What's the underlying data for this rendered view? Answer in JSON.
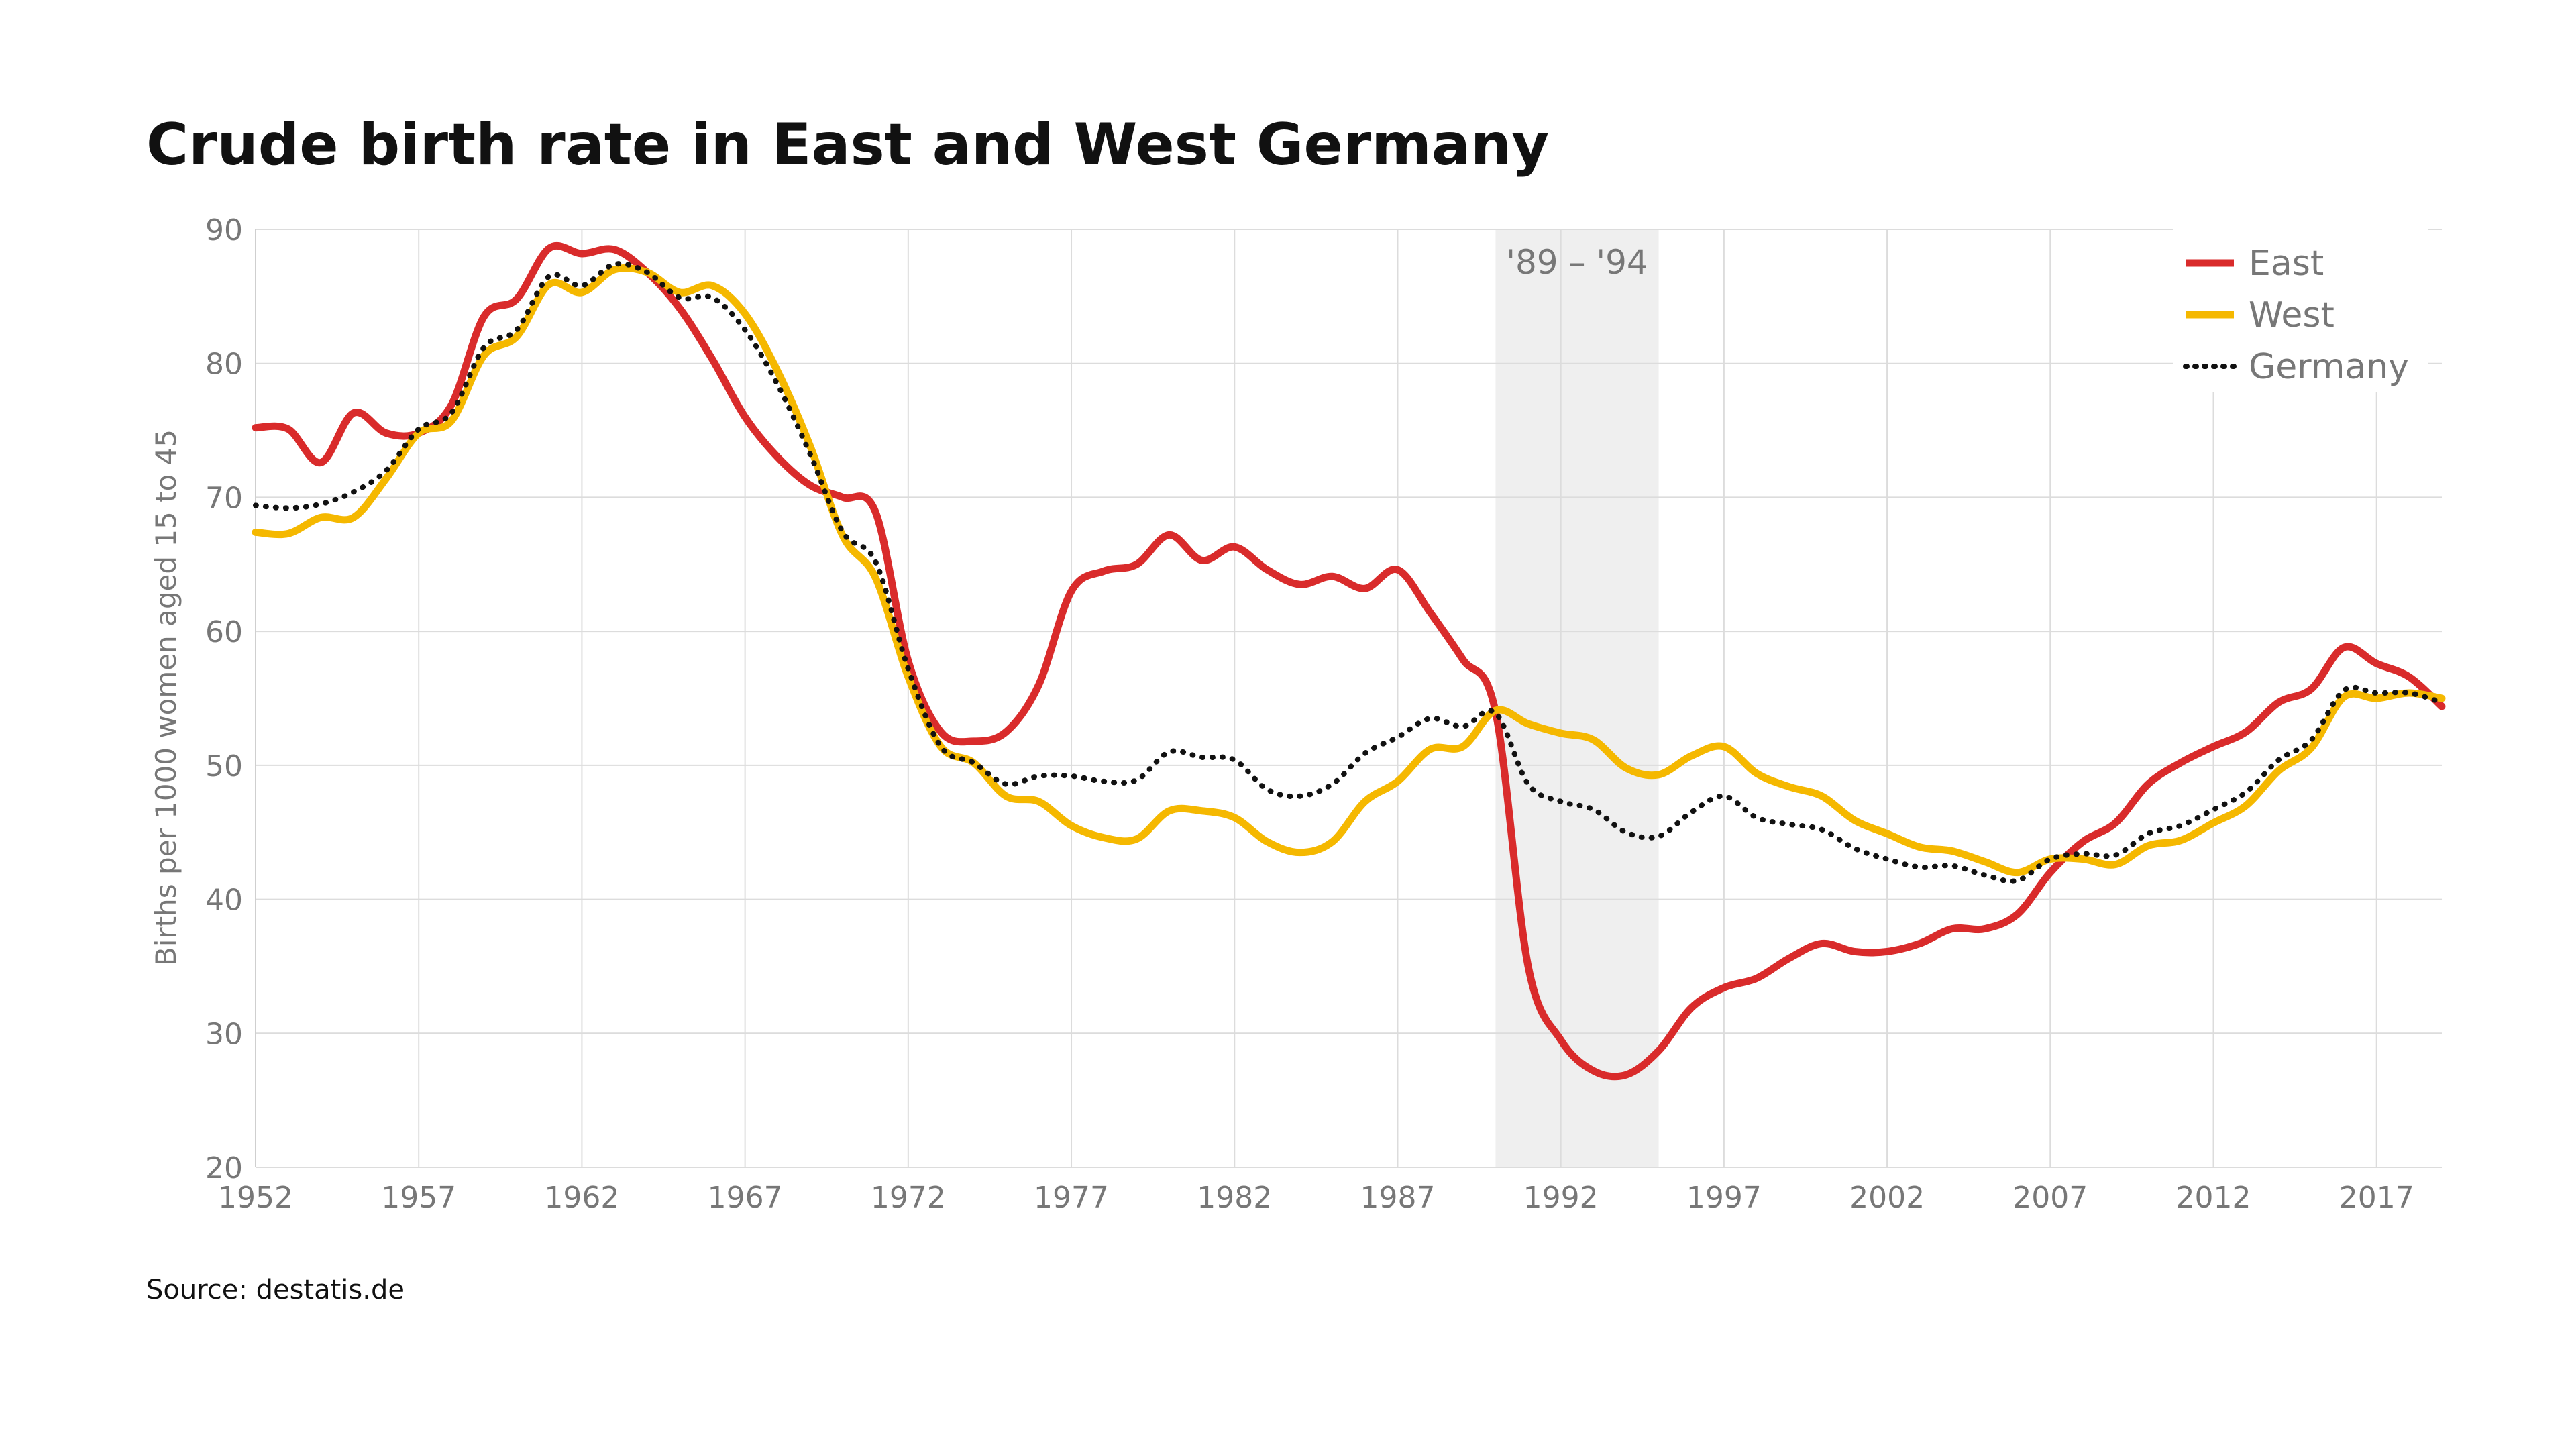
{
  "chart_data": {
    "type": "line",
    "title": "Crude birth rate in East and West Germany",
    "ylabel": "Births per 1000 women aged 15 to 45",
    "xlabel": "",
    "xlim": [
      1952,
      2019
    ],
    "ylim": [
      20,
      90
    ],
    "x_ticks": [
      1952,
      1957,
      1962,
      1967,
      1972,
      1977,
      1982,
      1987,
      1992,
      1997,
      2002,
      2007,
      2012,
      2017
    ],
    "y_ticks": [
      20,
      30,
      40,
      50,
      60,
      70,
      80,
      90
    ],
    "grid": true,
    "legend_position": "top-right",
    "source": "Source: destatis.de",
    "shaded_region": {
      "from": 1990,
      "to": 1995,
      "label": "'89 – '94",
      "color": "#efefef"
    },
    "x": [
      1952,
      1953,
      1954,
      1955,
      1956,
      1957,
      1958,
      1959,
      1960,
      1961,
      1962,
      1963,
      1964,
      1965,
      1966,
      1967,
      1968,
      1969,
      1970,
      1971,
      1972,
      1973,
      1974,
      1975,
      1976,
      1977,
      1978,
      1979,
      1980,
      1981,
      1982,
      1983,
      1984,
      1985,
      1986,
      1987,
      1988,
      1989,
      1990,
      1991,
      1992,
      1993,
      1994,
      1995,
      1996,
      1997,
      1998,
      1999,
      2000,
      2001,
      2002,
      2003,
      2004,
      2005,
      2006,
      2007,
      2008,
      2009,
      2010,
      2011,
      2012,
      2013,
      2014,
      2015,
      2016,
      2017,
      2018,
      2019
    ],
    "series": [
      {
        "name": "East",
        "color": "#d92b2b",
        "style": "solid",
        "values": [
          75.2,
          75.1,
          72.6,
          76.3,
          74.8,
          74.8,
          76.9,
          83.5,
          84.8,
          88.6,
          88.2,
          88.5,
          86.8,
          84.1,
          80.3,
          76.0,
          73.0,
          70.9,
          70.0,
          68.9,
          57.8,
          52.5,
          51.8,
          52.5,
          56.0,
          63.0,
          64.5,
          65.0,
          67.2,
          65.3,
          66.3,
          64.6,
          63.5,
          64.1,
          63.2,
          64.6,
          61.4,
          57.9,
          54.0,
          35.0,
          29.5,
          27.2,
          26.9,
          28.7,
          31.9,
          33.4,
          34.1,
          35.6,
          36.7,
          36.1,
          36.1,
          36.7,
          37.8,
          37.8,
          38.9,
          42.0,
          44.3,
          45.7,
          48.6,
          50.2,
          51.4,
          52.5,
          54.7,
          55.7,
          58.8,
          57.6,
          56.6,
          54.4
        ]
      },
      {
        "name": "West",
        "color": "#f5b800",
        "style": "solid",
        "values": [
          67.4,
          67.3,
          68.5,
          68.5,
          71.4,
          74.8,
          75.7,
          80.6,
          82.0,
          85.9,
          85.3,
          87.0,
          86.8,
          85.3,
          85.8,
          83.7,
          79.4,
          73.8,
          67.1,
          64.0,
          56.6,
          51.4,
          50.2,
          47.7,
          47.3,
          45.5,
          44.6,
          44.5,
          46.6,
          46.6,
          46.1,
          44.3,
          43.5,
          44.3,
          47.3,
          48.8,
          51.2,
          51.4,
          54.1,
          53.1,
          52.4,
          51.9,
          49.8,
          49.3,
          50.7,
          51.4,
          49.4,
          48.4,
          47.7,
          45.9,
          44.9,
          43.9,
          43.6,
          42.8,
          42.0,
          43.0,
          43.0,
          42.6,
          44.0,
          44.4,
          45.7,
          47.0,
          49.6,
          51.3,
          55.1,
          55.0,
          55.4,
          55.0
        ]
      },
      {
        "name": "Germany",
        "color": "#111111",
        "style": "dotted",
        "values": [
          69.4,
          69.2,
          69.5,
          70.4,
          72.0,
          75.1,
          76.3,
          81.2,
          82.5,
          86.5,
          85.8,
          87.4,
          86.8,
          84.9,
          84.9,
          82.5,
          78.4,
          73.2,
          67.4,
          65.2,
          57.2,
          51.4,
          50.2,
          48.6,
          49.2,
          49.2,
          48.8,
          48.9,
          51.0,
          50.6,
          50.4,
          48.2,
          47.7,
          48.6,
          50.9,
          52.1,
          53.5,
          52.9,
          53.9,
          48.6,
          47.3,
          46.7,
          45.0,
          44.7,
          46.5,
          47.7,
          46.1,
          45.6,
          45.2,
          43.8,
          43.0,
          42.4,
          42.5,
          41.8,
          41.4,
          43.0,
          43.4,
          43.3,
          44.9,
          45.5,
          46.7,
          48.0,
          50.4,
          51.9,
          55.6,
          55.4,
          55.4,
          54.7
        ]
      }
    ]
  }
}
